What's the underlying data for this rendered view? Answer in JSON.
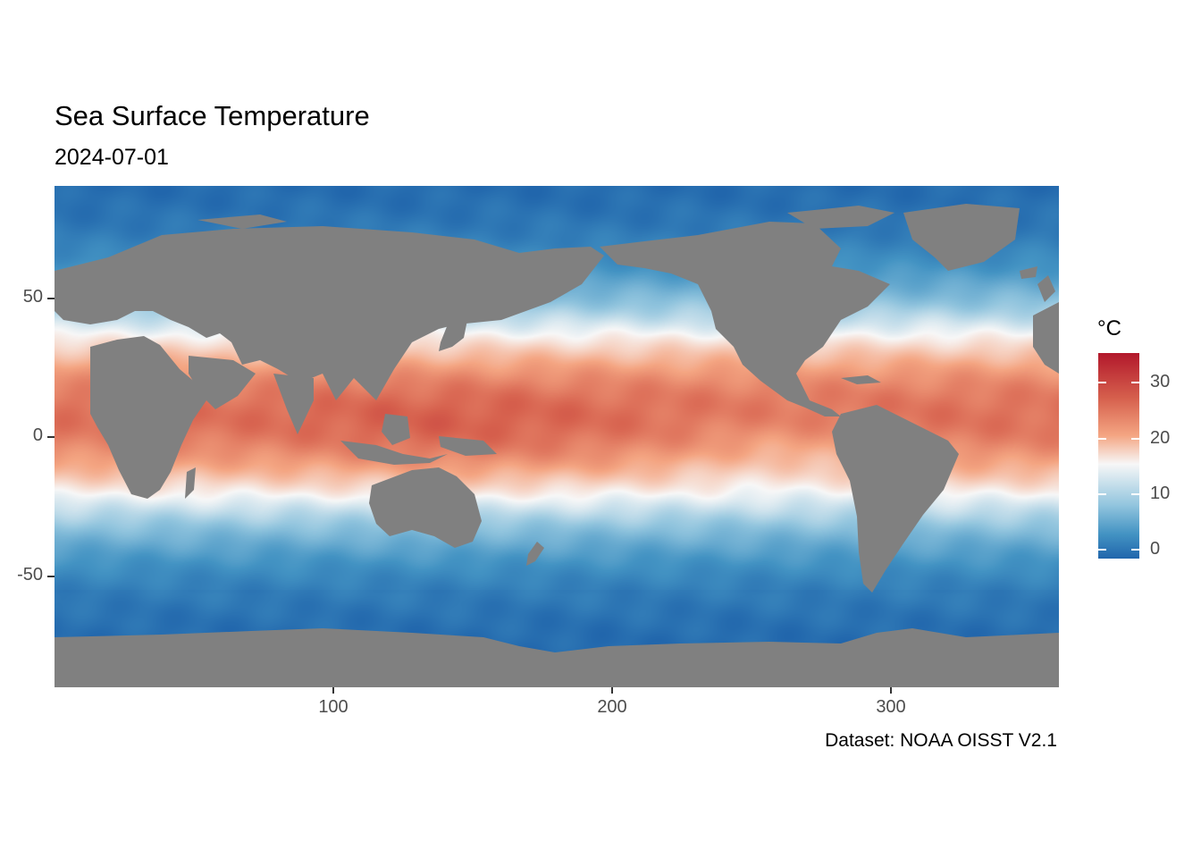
{
  "title": "Sea Surface Temperature",
  "subtitle": "2024-07-01",
  "caption": "Dataset: NOAA OISST V2.1",
  "legend": {
    "title": "°C",
    "ticks": [
      "30",
      "20",
      "10",
      "0"
    ],
    "range": [
      -2,
      35
    ],
    "colors": [
      "#2166ac",
      "#4393c3",
      "#92c5de",
      "#f7f7f7",
      "#f4a582",
      "#d6604d",
      "#b2182b"
    ]
  },
  "axes": {
    "x_ticks": [
      "100",
      "200",
      "300"
    ],
    "y_ticks": [
      "50",
      "0",
      "-50"
    ],
    "x_range": [
      0,
      360
    ],
    "y_range": [
      -90,
      90
    ]
  },
  "colors": {
    "land": "#808080"
  }
}
